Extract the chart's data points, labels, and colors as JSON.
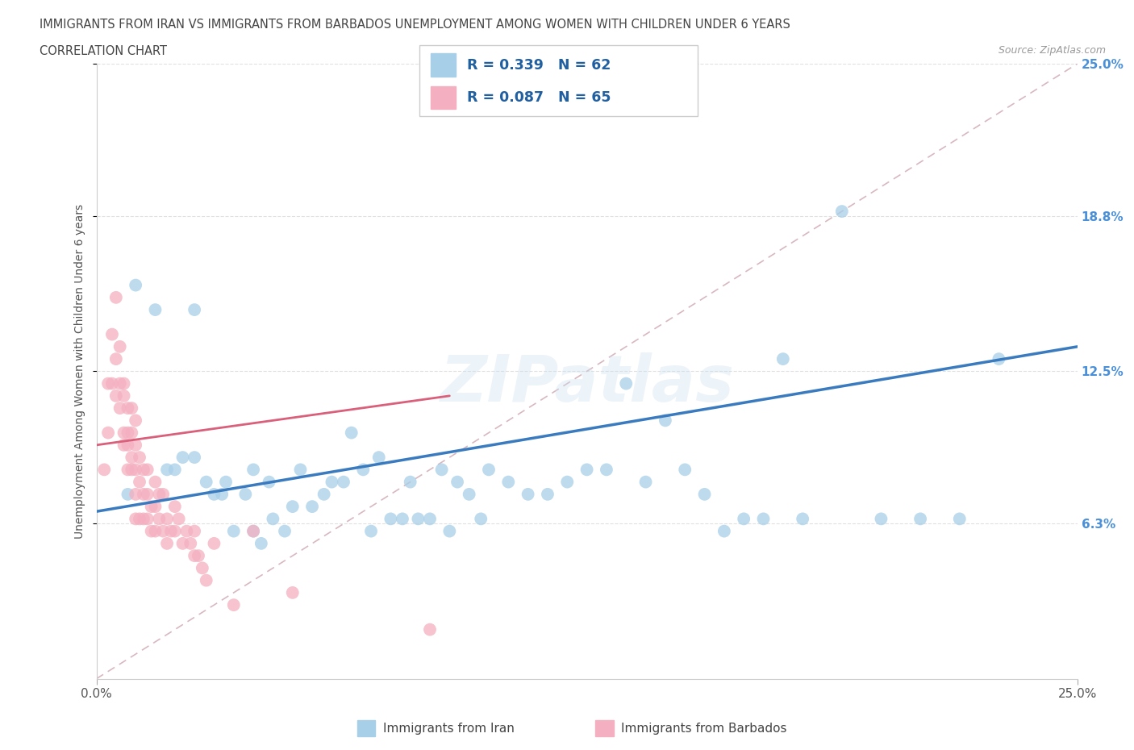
{
  "title_line1": "IMMIGRANTS FROM IRAN VS IMMIGRANTS FROM BARBADOS UNEMPLOYMENT AMONG WOMEN WITH CHILDREN UNDER 6 YEARS",
  "title_line2": "CORRELATION CHART",
  "source_text": "Source: ZipAtlas.com",
  "ylabel": "Unemployment Among Women with Children Under 6 years",
  "xlim": [
    0.0,
    0.25
  ],
  "ylim": [
    0.0,
    0.25
  ],
  "xtick_positions": [
    0.0,
    0.25
  ],
  "xtick_labels": [
    "0.0%",
    "25.0%"
  ],
  "ytick_values": [
    0.063,
    0.125,
    0.188,
    0.25
  ],
  "ytick_labels": [
    "6.3%",
    "12.5%",
    "18.8%",
    "25.0%"
  ],
  "iran_color": "#a8cfe8",
  "barbados_color": "#f4afc0",
  "iran_line_color": "#3a7bbf",
  "barbados_line_color": "#d95f7a",
  "diag_color": "#d8b8c0",
  "legend_label_iran": "Immigrants from Iran",
  "legend_label_barbados": "Immigrants from Barbados",
  "watermark": "ZIPatlas",
  "iran_R": 0.339,
  "iran_N": 62,
  "barbados_R": 0.087,
  "barbados_N": 65,
  "iran_trend_x0": 0.0,
  "iran_trend_y0": 0.068,
  "iran_trend_x1": 0.25,
  "iran_trend_y1": 0.135,
  "barbados_trend_x0": 0.0,
  "barbados_trend_y0": 0.095,
  "barbados_trend_x1": 0.09,
  "barbados_trend_y1": 0.115,
  "iran_scatter_x": [
    0.008,
    0.01,
    0.015,
    0.018,
    0.02,
    0.022,
    0.025,
    0.025,
    0.028,
    0.03,
    0.032,
    0.033,
    0.035,
    0.038,
    0.04,
    0.04,
    0.042,
    0.044,
    0.045,
    0.048,
    0.05,
    0.052,
    0.055,
    0.058,
    0.06,
    0.063,
    0.065,
    0.068,
    0.07,
    0.072,
    0.075,
    0.078,
    0.08,
    0.082,
    0.085,
    0.088,
    0.09,
    0.092,
    0.095,
    0.098,
    0.1,
    0.105,
    0.11,
    0.115,
    0.12,
    0.125,
    0.13,
    0.135,
    0.14,
    0.145,
    0.15,
    0.155,
    0.16,
    0.165,
    0.17,
    0.175,
    0.18,
    0.19,
    0.2,
    0.21,
    0.22,
    0.23
  ],
  "iran_scatter_y": [
    0.075,
    0.16,
    0.15,
    0.085,
    0.085,
    0.09,
    0.09,
    0.15,
    0.08,
    0.075,
    0.075,
    0.08,
    0.06,
    0.075,
    0.06,
    0.085,
    0.055,
    0.08,
    0.065,
    0.06,
    0.07,
    0.085,
    0.07,
    0.075,
    0.08,
    0.08,
    0.1,
    0.085,
    0.06,
    0.09,
    0.065,
    0.065,
    0.08,
    0.065,
    0.065,
    0.085,
    0.06,
    0.08,
    0.075,
    0.065,
    0.085,
    0.08,
    0.075,
    0.075,
    0.08,
    0.085,
    0.085,
    0.12,
    0.08,
    0.105,
    0.085,
    0.075,
    0.06,
    0.065,
    0.065,
    0.13,
    0.065,
    0.19,
    0.065,
    0.065,
    0.065,
    0.13
  ],
  "barbados_scatter_x": [
    0.002,
    0.003,
    0.003,
    0.004,
    0.004,
    0.005,
    0.005,
    0.005,
    0.006,
    0.006,
    0.006,
    0.007,
    0.007,
    0.007,
    0.007,
    0.008,
    0.008,
    0.008,
    0.008,
    0.009,
    0.009,
    0.009,
    0.009,
    0.01,
    0.01,
    0.01,
    0.01,
    0.01,
    0.011,
    0.011,
    0.011,
    0.012,
    0.012,
    0.012,
    0.013,
    0.013,
    0.013,
    0.014,
    0.014,
    0.015,
    0.015,
    0.015,
    0.016,
    0.016,
    0.017,
    0.017,
    0.018,
    0.018,
    0.019,
    0.02,
    0.02,
    0.021,
    0.022,
    0.023,
    0.024,
    0.025,
    0.025,
    0.026,
    0.027,
    0.028,
    0.03,
    0.035,
    0.04,
    0.05,
    0.085
  ],
  "barbados_scatter_y": [
    0.085,
    0.1,
    0.12,
    0.12,
    0.14,
    0.115,
    0.13,
    0.155,
    0.11,
    0.12,
    0.135,
    0.095,
    0.1,
    0.115,
    0.12,
    0.085,
    0.095,
    0.1,
    0.11,
    0.085,
    0.09,
    0.1,
    0.11,
    0.065,
    0.075,
    0.085,
    0.095,
    0.105,
    0.065,
    0.08,
    0.09,
    0.065,
    0.075,
    0.085,
    0.065,
    0.075,
    0.085,
    0.06,
    0.07,
    0.06,
    0.07,
    0.08,
    0.065,
    0.075,
    0.06,
    0.075,
    0.055,
    0.065,
    0.06,
    0.06,
    0.07,
    0.065,
    0.055,
    0.06,
    0.055,
    0.05,
    0.06,
    0.05,
    0.045,
    0.04,
    0.055,
    0.03,
    0.06,
    0.035,
    0.02
  ]
}
